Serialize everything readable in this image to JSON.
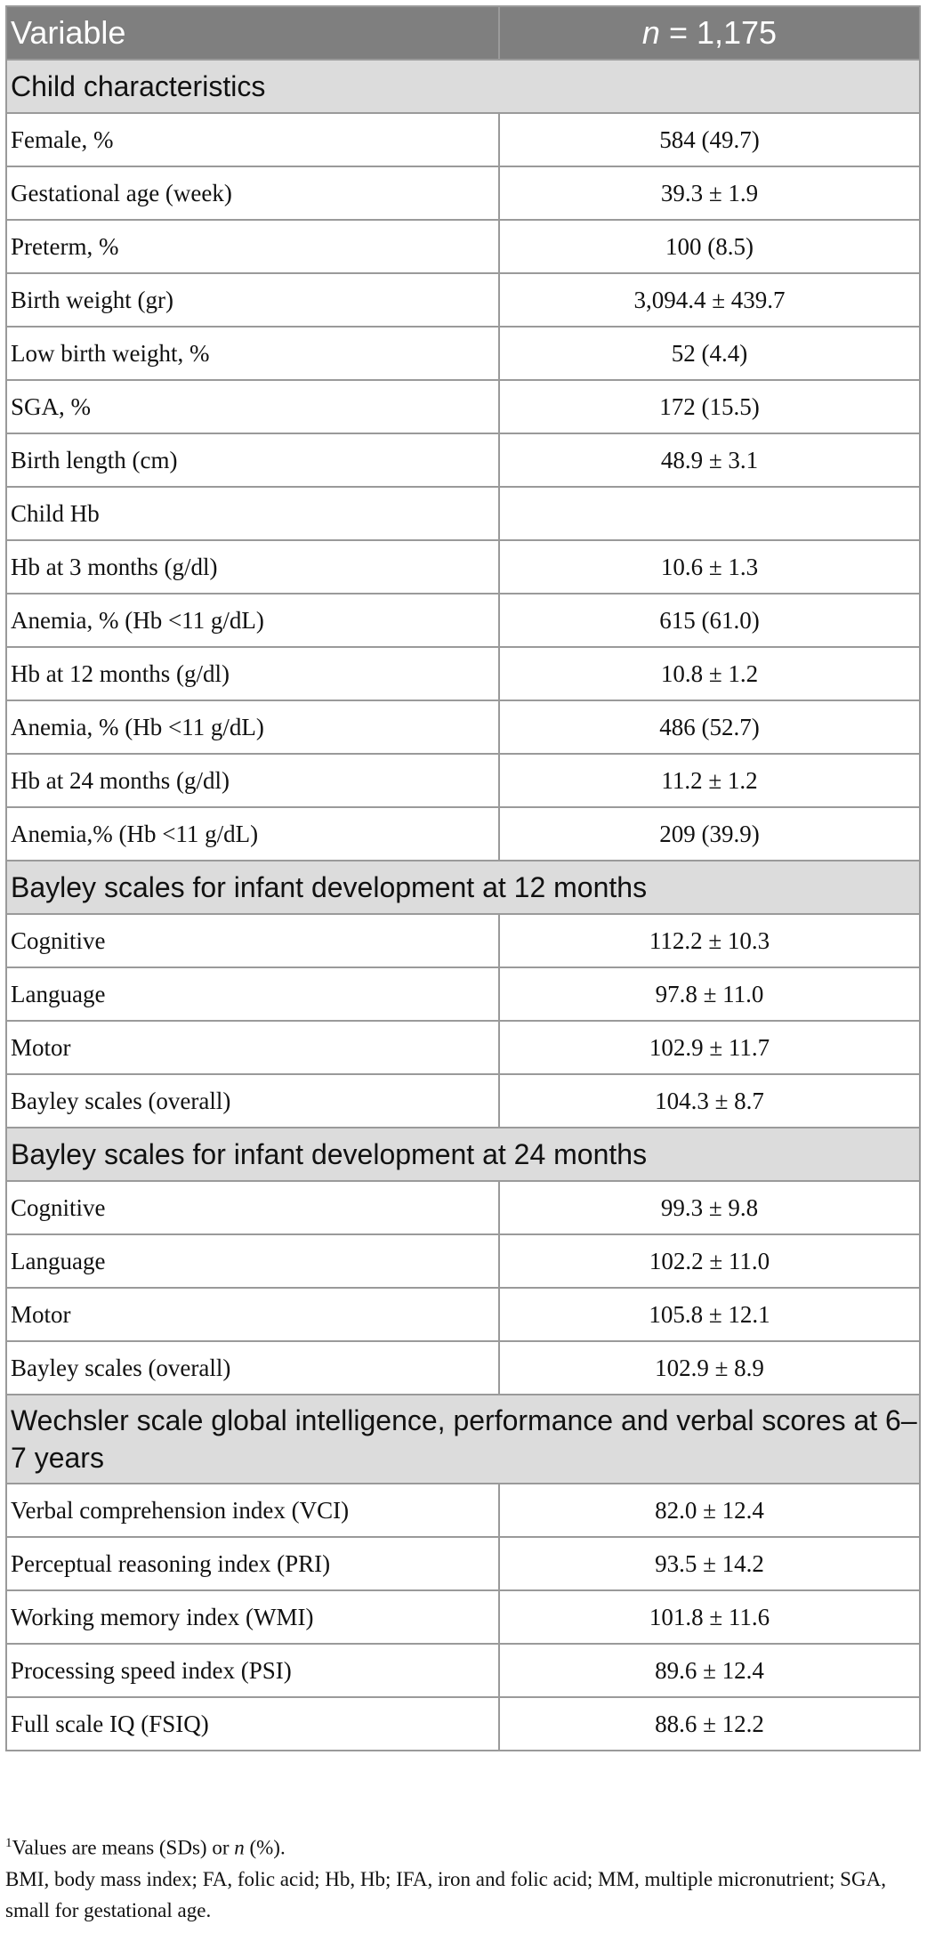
{
  "table": {
    "header": {
      "col1": "Variable",
      "col2_italic": "n",
      "col2_rest": " = 1,175"
    },
    "sections": [
      {
        "title": "Child characteristics",
        "rows": [
          {
            "label": "Female, %",
            "value": "584 (49.7)"
          },
          {
            "label": "Gestational age (week)",
            "value": "39.3 ± 1.9"
          },
          {
            "label": "Preterm, %",
            "value": "100 (8.5)"
          },
          {
            "label": "Birth weight (gr)",
            "value": "3,094.4 ± 439.7"
          },
          {
            "label": "Low birth weight, %",
            "value": "52 (4.4)"
          },
          {
            "label": "SGA, %",
            "value": "172 (15.5)"
          },
          {
            "label": "Birth length (cm)",
            "value": "48.9 ± 3.1"
          },
          {
            "label": "Child Hb",
            "value": ""
          },
          {
            "label": "Hb at 3 months (g/dl)",
            "value": "10.6 ± 1.3"
          },
          {
            "label": "Anemia, % (Hb <11 g/dL)",
            "value": "615 (61.0)"
          },
          {
            "label": "Hb at 12 months (g/dl)",
            "value": "10.8 ± 1.2"
          },
          {
            "label": "Anemia, % (Hb <11 g/dL)",
            "value": "486 (52.7)"
          },
          {
            "label": "Hb at 24 months (g/dl)",
            "value": "11.2 ± 1.2"
          },
          {
            "label": "Anemia,% (Hb <11 g/dL)",
            "value": "209 (39.9)"
          }
        ]
      },
      {
        "title": "Bayley scales for infant development at 12 months",
        "rows": [
          {
            "label": "Cognitive",
            "value": "112.2 ± 10.3"
          },
          {
            "label": "Language",
            "value": "97.8 ± 11.0"
          },
          {
            "label": "Motor",
            "value": "102.9 ± 11.7"
          },
          {
            "label": "Bayley scales (overall)",
            "value": "104.3 ± 8.7"
          }
        ]
      },
      {
        "title": "Bayley scales for infant development at 24 months",
        "rows": [
          {
            "label": "Cognitive",
            "value": "99.3 ± 9.8"
          },
          {
            "label": "Language",
            "value": "102.2 ± 11.0"
          },
          {
            "label": "Motor",
            "value": "105.8 ± 12.1"
          },
          {
            "label": "Bayley scales (overall)",
            "value": "102.9 ± 8.9"
          }
        ]
      },
      {
        "title": "Wechsler scale global intelligence, performance and verbal scores at 6–7 years",
        "rows": [
          {
            "label": "Verbal comprehension index (VCI)",
            "value": "82.0 ± 12.4"
          },
          {
            "label": "Perceptual reasoning index (PRI)",
            "value": "93.5 ± 14.2"
          },
          {
            "label": "Working memory index (WMI)",
            "value": "101.8 ± 11.6"
          },
          {
            "label": "Processing speed index (PSI)",
            "value": "89.6 ± 12.4"
          },
          {
            "label": "Full scale IQ (FSIQ)",
            "value": "88.6 ± 12.2"
          }
        ]
      }
    ]
  },
  "footnotes": {
    "note1_mark": "1",
    "note1_text_a": "Values are means (SDs) or ",
    "note1_italic": "n",
    "note1_text_b": " (%).",
    "abbreviations": "BMI, body mass index; FA, folic acid; Hb, Hb; IFA, iron and folic acid; MM, multiple micronutrient; SGA, small for gestational age."
  }
}
